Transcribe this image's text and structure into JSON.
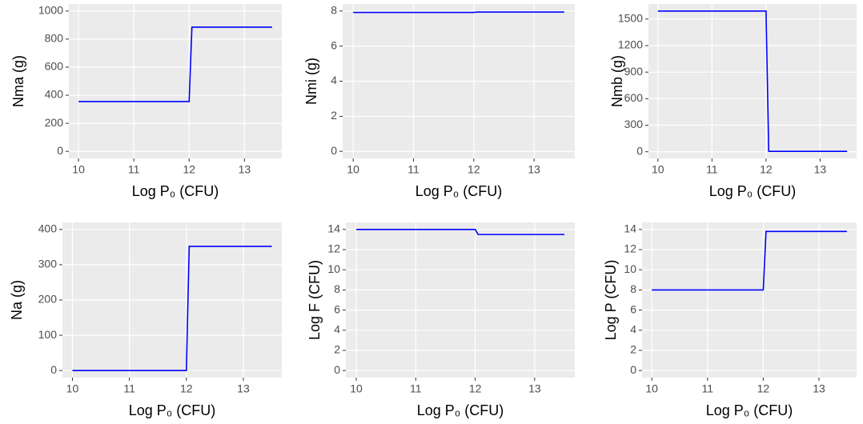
{
  "chart_data": [
    {
      "type": "line",
      "x_label": "Log P₀ (CFU)",
      "y_label": "Nma (g)",
      "x": [
        10,
        12.0,
        12.05,
        13.5
      ],
      "series": [
        {
          "color": "#0000ff",
          "values": [
            355,
            355,
            885,
            885
          ]
        }
      ],
      "xlim": [
        9.825,
        13.675
      ],
      "xticks": [
        10,
        11,
        12,
        13
      ],
      "ylim": [
        -50,
        1050
      ],
      "yticks": [
        0,
        200,
        400,
        600,
        800,
        1000
      ],
      "grid": true
    },
    {
      "type": "line",
      "x_label": "Log P₀ (CFU)",
      "y_label": "Nmi (g)",
      "x": [
        10,
        12.0,
        12.05,
        13.5
      ],
      "series": [
        {
          "color": "#0000ff",
          "values": [
            7.92,
            7.92,
            7.94,
            7.94
          ]
        }
      ],
      "xlim": [
        9.825,
        13.675
      ],
      "xticks": [
        10,
        11,
        12,
        13
      ],
      "ylim": [
        -0.4,
        8.4
      ],
      "yticks": [
        0,
        2,
        4,
        6,
        8
      ],
      "grid": true
    },
    {
      "type": "line",
      "x_label": "Log P₀ (CFU)",
      "y_label": "Nmb (g)",
      "x": [
        10,
        12.0,
        12.05,
        13.5
      ],
      "series": [
        {
          "color": "#0000ff",
          "values": [
            1590,
            1590,
            5,
            5
          ]
        }
      ],
      "xlim": [
        9.825,
        13.675
      ],
      "xticks": [
        10,
        11,
        12,
        13
      ],
      "ylim": [
        -75,
        1670
      ],
      "yticks": [
        0,
        300,
        600,
        900,
        1200,
        1500
      ],
      "grid": true
    },
    {
      "type": "line",
      "x_label": "Log P₀ (CFU)",
      "y_label": "Na (g)",
      "x": [
        10,
        12.0,
        12.05,
        13.5
      ],
      "series": [
        {
          "color": "#0000ff",
          "values": [
            0,
            0,
            352,
            352
          ]
        }
      ],
      "xlim": [
        9.825,
        13.675
      ],
      "xticks": [
        10,
        11,
        12,
        13
      ],
      "ylim": [
        -20,
        420
      ],
      "yticks": [
        0,
        100,
        200,
        300,
        400
      ],
      "grid": true
    },
    {
      "type": "line",
      "x_label": "Log P₀ (CFU)",
      "y_label": "Log F (CFU)",
      "x": [
        10,
        12.0,
        12.05,
        13.5
      ],
      "series": [
        {
          "color": "#0000ff",
          "values": [
            14,
            14,
            13.5,
            13.5
          ]
        }
      ],
      "xlim": [
        9.825,
        13.675
      ],
      "xticks": [
        10,
        11,
        12,
        13
      ],
      "ylim": [
        -0.7,
        14.7
      ],
      "yticks": [
        0,
        2,
        4,
        6,
        8,
        10,
        12,
        14
      ],
      "grid": true
    },
    {
      "type": "line",
      "x_label": "Log P₀ (CFU)",
      "y_label": "Log P (CFU)",
      "x": [
        10,
        12.0,
        12.05,
        13.5
      ],
      "series": [
        {
          "color": "#0000ff",
          "values": [
            8,
            8,
            13.8,
            13.8
          ]
        }
      ],
      "xlim": [
        9.825,
        13.675
      ],
      "xticks": [
        10,
        11,
        12,
        13
      ],
      "ylim": [
        -0.7,
        14.7
      ],
      "yticks": [
        0,
        2,
        4,
        6,
        8,
        10,
        12,
        14
      ],
      "grid": true
    }
  ]
}
